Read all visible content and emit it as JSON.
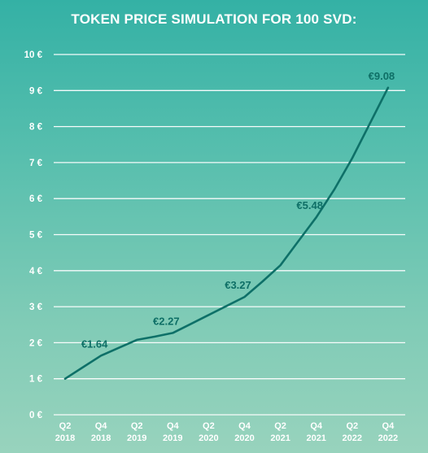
{
  "chart_data": {
    "type": "line",
    "title": "TOKEN PRICE SIMULATION FOR 100 SVD:",
    "xlabel": "",
    "ylabel": "",
    "categories": [
      [
        "Q2",
        "2018"
      ],
      [
        "Q4",
        "2018"
      ],
      [
        "Q2",
        "2019"
      ],
      [
        "Q4",
        "2019"
      ],
      [
        "Q2",
        "2020"
      ],
      [
        "Q4",
        "2020"
      ],
      [
        "Q2",
        "2021"
      ],
      [
        "Q4",
        "2021"
      ],
      [
        "Q2",
        "2022"
      ],
      [
        "Q4",
        "2022"
      ]
    ],
    "ylim": [
      0,
      10
    ],
    "y_ticks": [
      "0 €",
      "1 €",
      "2 €",
      "3 €",
      "4 €",
      "5 €",
      "6 €",
      "7 €",
      "8 €",
      "9 €",
      "10 €"
    ],
    "grid": true,
    "series": [
      {
        "x": [
          0,
          0.5,
          1,
          1.5,
          2,
          2.5,
          3,
          3.5,
          4,
          4.5,
          5,
          5.5,
          6,
          6.5,
          7,
          7.5,
          8,
          8.5,
          9
        ],
        "values": [
          1.0,
          1.32,
          1.64,
          1.86,
          2.08,
          2.17,
          2.27,
          2.52,
          2.77,
          3.02,
          3.27,
          3.7,
          4.15,
          4.82,
          5.48,
          6.25,
          7.12,
          8.1,
          9.08
        ]
      }
    ],
    "data_labels": [
      {
        "x": 1,
        "value": 1.64,
        "text": "€1.64"
      },
      {
        "x": 3,
        "value": 2.27,
        "text": "€2.27"
      },
      {
        "x": 5,
        "value": 3.27,
        "text": "€3.27"
      },
      {
        "x": 7,
        "value": 5.48,
        "text": "€5.48"
      },
      {
        "x": 9,
        "value": 9.08,
        "text": "€9.08"
      }
    ],
    "colors": {
      "line": "#0e7068",
      "data_label": "#0e6f66",
      "axis_text": "#ffffff",
      "grid": "#ffffff",
      "background_top": "#34b1a5",
      "background_bottom": "#98d3bd"
    }
  }
}
